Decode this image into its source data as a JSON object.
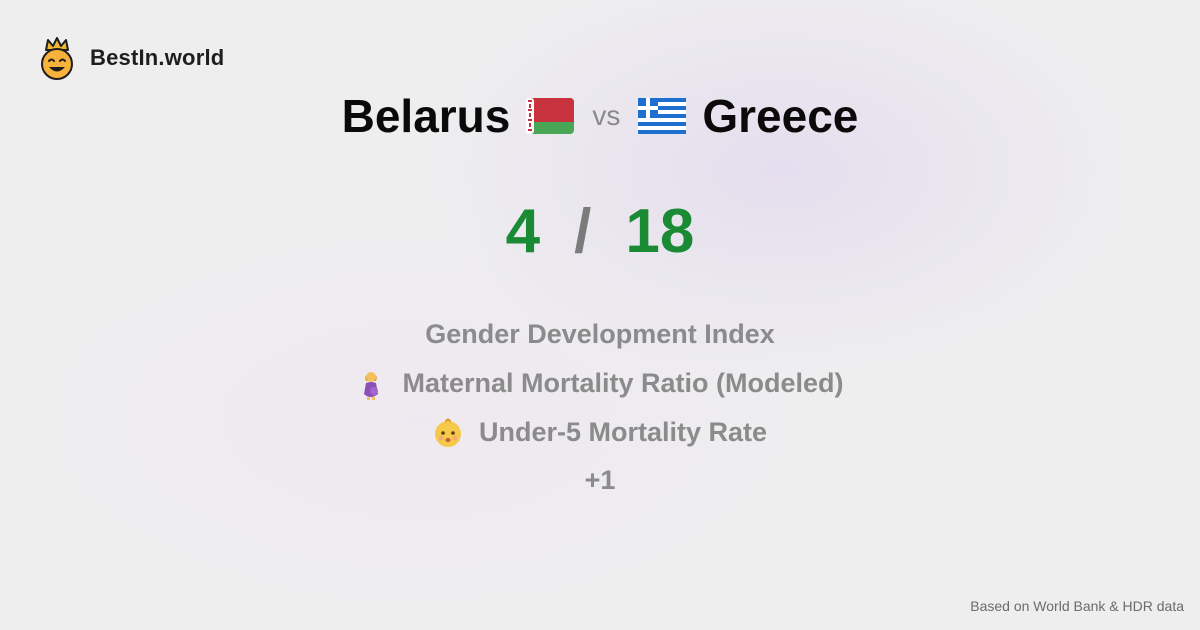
{
  "brand": {
    "name": "BestIn.world",
    "logo_icon": "crowned-smiley-icon"
  },
  "comparison": {
    "left": {
      "name": "Belarus",
      "flag_icon": "belarus-flag-icon"
    },
    "vs_label": "vs",
    "right": {
      "name": "Greece",
      "flag_icon": "greece-flag-icon"
    }
  },
  "score": {
    "left": "4",
    "separator": "/",
    "right": "18",
    "color": "#1a8a35"
  },
  "metrics": [
    {
      "label": "Gender Development Index",
      "icon": ""
    },
    {
      "label": "Maternal Mortality Ratio (Modeled)",
      "icon": "pregnant-woman-icon"
    },
    {
      "label": "Under-5 Mortality Rate",
      "icon": "baby-face-icon"
    }
  ],
  "more_label": "+1",
  "footer": "Based on World Bank & HDR data"
}
